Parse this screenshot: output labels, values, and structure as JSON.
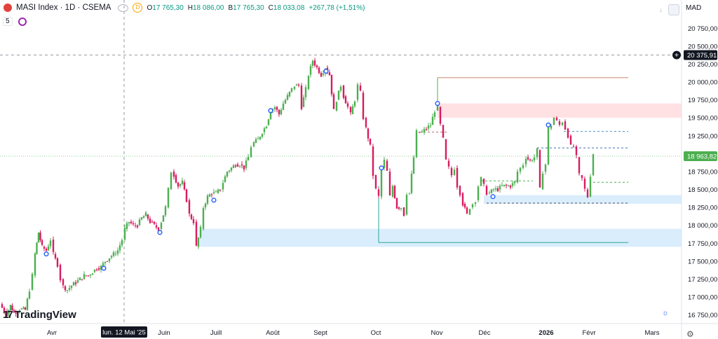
{
  "header": {
    "symbol": "MASI Index · 1D · CSEMA",
    "d_badge": "D",
    "ohlc": {
      "o_label": "O",
      "o": "17 765,30",
      "h_label": "H",
      "h": "18 086,00",
      "b_label": "B",
      "b": "17 765,30",
      "c_label": "C",
      "c": "18 033,08",
      "chg": "+267,78 (+1,51%)"
    },
    "indicator_count": "5",
    "currency": "MAD"
  },
  "brand": {
    "mark": "17",
    "name": "TradingView"
  },
  "icons": {
    "logo": "red-circle-icon",
    "visibility": "eye-icon",
    "sync": "sync-icon",
    "down": "arrow-down-icon",
    "maximize": "square-icon",
    "settings": "gear-icon",
    "theme": "sun-icon"
  },
  "colors": {
    "up": "#089981",
    "upBody": "#4caf50",
    "down": "#d81b60",
    "accent": "#2962ff",
    "pinkZone": "#ffcdd2",
    "blueZone": "#bbdefb"
  },
  "chart_data": {
    "type": "candlestick",
    "x_labels": [
      "Avr",
      "Juin",
      "Juill",
      "Août",
      "Sept",
      "Oct",
      "Nov",
      "Déc",
      "2026",
      "Févr",
      "Mars"
    ],
    "crosshair_date": "lun. 12 Mai '25",
    "y_ticks": [
      "20 750,00",
      "20 500,00",
      "20 250,00",
      "20 000,00",
      "19 750,00",
      "19 500,00",
      "19 250,00",
      "19 000,00",
      "18 750,00",
      "18 500,00",
      "18 250,00",
      "18 000,00",
      "17 750,00",
      "17 500,00",
      "17 250,00",
      "17 000,00",
      "16 750,00"
    ],
    "ylim": [
      16700,
      20900
    ],
    "last_price_label": "18 963,82",
    "crosshair_price_label": "20 375,91",
    "close_path": [
      [
        0,
        16900
      ],
      [
        6,
        16800
      ],
      [
        10,
        16760
      ],
      [
        15,
        16880
      ],
      [
        20,
        16780
      ],
      [
        28,
        16830
      ],
      [
        36,
        16820
      ],
      [
        42,
        17100
      ],
      [
        46,
        17300
      ],
      [
        50,
        17600
      ],
      [
        55,
        17900
      ],
      [
        60,
        17700
      ],
      [
        66,
        17650
      ],
      [
        72,
        17800
      ],
      [
        76,
        17600
      ],
      [
        82,
        17450
      ],
      [
        86,
        17250
      ],
      [
        90,
        17150
      ],
      [
        96,
        17100
      ],
      [
        102,
        17160
      ],
      [
        108,
        17200
      ],
      [
        114,
        17250
      ],
      [
        120,
        17300
      ],
      [
        126,
        17300
      ],
      [
        132,
        17350
      ],
      [
        138,
        17400
      ],
      [
        144,
        17420
      ],
      [
        150,
        17500
      ],
      [
        156,
        17550
      ],
      [
        162,
        17600
      ],
      [
        168,
        17650
      ],
      [
        174,
        17800
      ],
      [
        178,
        17950
      ],
      [
        184,
        18050
      ],
      [
        190,
        18000
      ],
      [
        196,
        18000
      ],
      [
        202,
        18100
      ],
      [
        208,
        18150
      ],
      [
        214,
        18050
      ],
      [
        220,
        18000
      ],
      [
        226,
        17950
      ],
      [
        230,
        18050
      ],
      [
        236,
        18250
      ],
      [
        240,
        18500
      ],
      [
        244,
        18750
      ],
      [
        248,
        18700
      ],
      [
        254,
        18550
      ],
      [
        260,
        18600
      ],
      [
        266,
        18350
      ],
      [
        270,
        18150
      ],
      [
        276,
        18050
      ],
      [
        280,
        17700
      ],
      [
        286,
        17950
      ],
      [
        290,
        18250
      ],
      [
        296,
        18400
      ],
      [
        302,
        18450
      ],
      [
        308,
        18450
      ],
      [
        314,
        18500
      ],
      [
        318,
        18600
      ],
      [
        324,
        18750
      ],
      [
        330,
        18800
      ],
      [
        336,
        18850
      ],
      [
        342,
        18850
      ],
      [
        348,
        18800
      ],
      [
        354,
        18950
      ],
      [
        358,
        19100
      ],
      [
        362,
        19150
      ],
      [
        368,
        19200
      ],
      [
        374,
        19300
      ],
      [
        380,
        19400
      ],
      [
        386,
        19600
      ],
      [
        392,
        19650
      ],
      [
        398,
        19550
      ],
      [
        404,
        19700
      ],
      [
        410,
        19800
      ],
      [
        416,
        19900
      ],
      [
        420,
        19950
      ],
      [
        426,
        19950
      ],
      [
        430,
        19650
      ],
      [
        436,
        19900
      ],
      [
        440,
        20100
      ],
      [
        446,
        20300
      ],
      [
        452,
        20200
      ],
      [
        458,
        20100
      ],
      [
        464,
        20200
      ],
      [
        470,
        20100
      ],
      [
        476,
        19600
      ],
      [
        480,
        19750
      ],
      [
        486,
        19950
      ],
      [
        490,
        19800
      ],
      [
        496,
        19650
      ],
      [
        500,
        19550
      ],
      [
        506,
        19750
      ],
      [
        510,
        19950
      ],
      [
        514,
        19850
      ],
      [
        518,
        19500
      ],
      [
        522,
        19350
      ],
      [
        528,
        19100
      ],
      [
        532,
        18700
      ],
      [
        536,
        18500
      ],
      [
        540,
        18400
      ],
      [
        544,
        18800
      ],
      [
        548,
        18900
      ],
      [
        552,
        18750
      ],
      [
        556,
        18400
      ],
      [
        560,
        18550
      ],
      [
        566,
        18250
      ],
      [
        572,
        18250
      ],
      [
        576,
        18150
      ],
      [
        580,
        18450
      ],
      [
        584,
        18450
      ],
      [
        590,
        18950
      ],
      [
        594,
        19300
      ],
      [
        598,
        19300
      ],
      [
        602,
        19300
      ],
      [
        608,
        19350
      ],
      [
        614,
        19400
      ],
      [
        620,
        19600
      ],
      [
        624,
        19650
      ],
      [
        628,
        19400
      ],
      [
        632,
        19200
      ],
      [
        636,
        18900
      ],
      [
        640,
        18800
      ],
      [
        644,
        18700
      ],
      [
        648,
        18800
      ],
      [
        652,
        18550
      ],
      [
        656,
        18450
      ],
      [
        660,
        18300
      ],
      [
        666,
        18150
      ],
      [
        670,
        18250
      ],
      [
        674,
        18300
      ],
      [
        678,
        18350
      ],
      [
        682,
        18550
      ],
      [
        686,
        18650
      ],
      [
        690,
        18550
      ],
      [
        694,
        18450
      ],
      [
        698,
        18450
      ],
      [
        704,
        18500
      ],
      [
        710,
        18500
      ],
      [
        716,
        18550
      ],
      [
        722,
        18550
      ],
      [
        728,
        18550
      ],
      [
        734,
        18600
      ],
      [
        738,
        18750
      ],
      [
        742,
        18800
      ],
      [
        746,
        18850
      ],
      [
        750,
        18950
      ],
      [
        756,
        18900
      ],
      [
        762,
        18950
      ],
      [
        766,
        19050
      ],
      [
        770,
        18500
      ],
      [
        774,
        18750
      ],
      [
        778,
        18850
      ],
      [
        782,
        19350
      ],
      [
        786,
        19400
      ],
      [
        790,
        19500
      ],
      [
        794,
        19450
      ],
      [
        798,
        19400
      ],
      [
        802,
        19450
      ],
      [
        806,
        19350
      ],
      [
        810,
        19250
      ],
      [
        814,
        19100
      ],
      [
        818,
        19100
      ],
      [
        822,
        18950
      ],
      [
        826,
        18700
      ],
      [
        830,
        18650
      ],
      [
        834,
        18500
      ],
      [
        838,
        18400
      ],
      [
        842,
        18700
      ],
      [
        846,
        19000
      ]
    ],
    "zones": [
      {
        "name": "pink-resistance-zone",
        "from_x": 624,
        "to_x": 972,
        "y1": 19700,
        "y2": 19500
      },
      {
        "name": "blue-support-zone-upper",
        "from_x": 690,
        "to_x": 972,
        "y1": 18420,
        "y2": 18300
      },
      {
        "name": "blue-support-zone-lower",
        "from_x": 285,
        "to_x": 972,
        "y1": 17950,
        "y2": 17700
      }
    ],
    "levels": [
      {
        "name": "brown-level",
        "from_x": 624,
        "to_x": 896,
        "y": 20060,
        "color": "#c8876a",
        "dash": false
      },
      {
        "name": "green-level",
        "from_x": 540,
        "to_x": 896,
        "y": 17760,
        "color": "#26a69a",
        "dash": false
      },
      {
        "name": "dotted-level-a",
        "from_x": 598,
        "to_x": 640,
        "y": 19300,
        "color": "#b36a6a",
        "dash": true
      },
      {
        "name": "dotted-level-b",
        "from_x": 804,
        "to_x": 896,
        "y": 19310,
        "color": "#4a90c8",
        "dash": true
      },
      {
        "name": "dotted-level-c",
        "from_x": 766,
        "to_x": 896,
        "y": 19080,
        "color": "#3f6fb5",
        "dash": true
      },
      {
        "name": "dotted-level-d",
        "from_x": 686,
        "to_x": 760,
        "y": 18620,
        "color": "#4caf50",
        "dash": true
      },
      {
        "name": "dotted-level-e",
        "from_x": 846,
        "to_x": 896,
        "y": 18600,
        "color": "#4caf50",
        "dash": true
      },
      {
        "name": "dotted-level-f",
        "from_x": 694,
        "to_x": 896,
        "y": 18310,
        "color": "#4a4f5c",
        "dash": true
      }
    ],
    "markers": [
      [
        66,
        17600
      ],
      [
        228,
        17900
      ],
      [
        148,
        17400
      ],
      [
        305,
        18350
      ],
      [
        386,
        19600
      ],
      [
        465,
        20150
      ],
      [
        544,
        18800
      ],
      [
        624,
        19700
      ],
      [
        703,
        18400
      ],
      [
        782,
        19400
      ]
    ],
    "crosshair": {
      "x": 177,
      "y": 20375
    }
  }
}
